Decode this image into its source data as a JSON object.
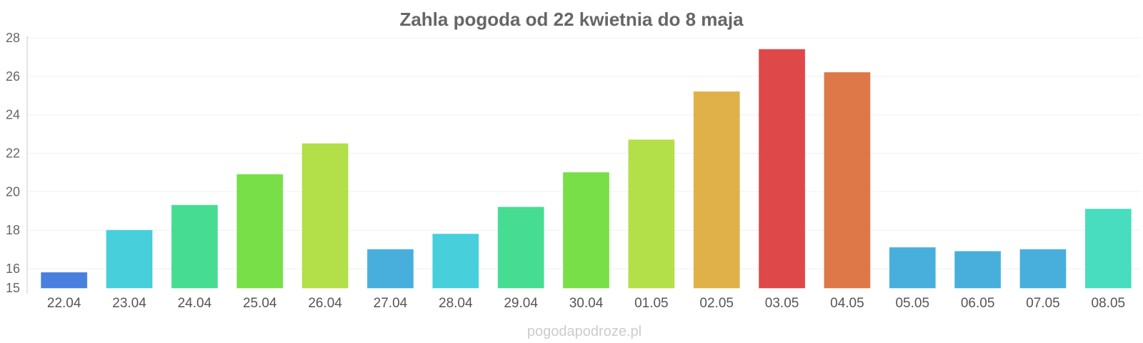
{
  "chart_data": {
    "type": "bar",
    "title": "Zahla pogoda od 22 kwietnia do 8 maja",
    "xlabel": "",
    "ylabel": "",
    "ylim": [
      15,
      28
    ],
    "yticks": [
      15,
      16,
      18,
      20,
      22,
      24,
      26,
      28
    ],
    "grid": true,
    "categories": [
      "22.04",
      "23.04",
      "24.04",
      "25.04",
      "26.04",
      "27.04",
      "28.04",
      "29.04",
      "30.04",
      "01.05",
      "02.05",
      "03.05",
      "04.05",
      "05.05",
      "06.05",
      "07.05",
      "08.05"
    ],
    "values": [
      15.8,
      18.0,
      19.3,
      20.9,
      22.5,
      17.0,
      17.8,
      19.2,
      21.0,
      22.7,
      25.2,
      27.4,
      26.2,
      17.1,
      16.9,
      17.0,
      19.1
    ],
    "colors": [
      "#3a74db",
      "#37cbd9",
      "#36da8a",
      "#6cdc38",
      "#addc38",
      "#38a8da",
      "#37cbd9",
      "#36da8a",
      "#6cdc38",
      "#addc38",
      "#dcaa38",
      "#dc3838",
      "#dc6d38",
      "#38a8da",
      "#38a8da",
      "#38a8da",
      "#38dab8"
    ]
  },
  "source": "pogodapodroze.pl"
}
